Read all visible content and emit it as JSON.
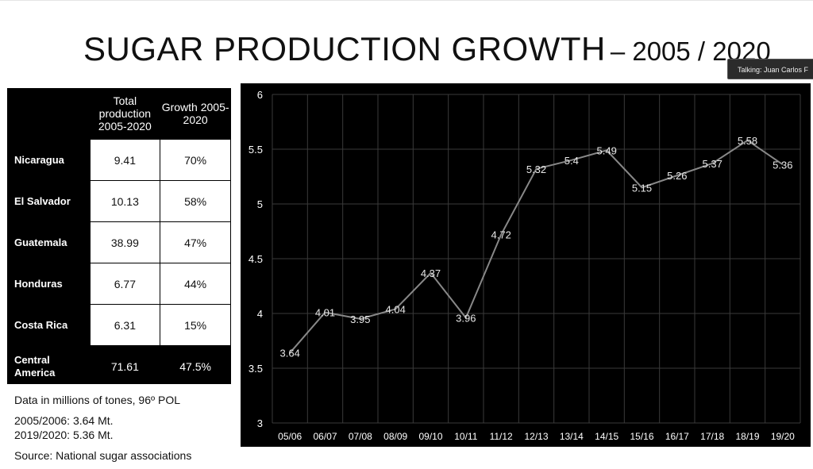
{
  "slide": {
    "title_main": "SUGAR PRODUCTION GROWTH",
    "title_sub": "– 2005 / 2020"
  },
  "meeting": {
    "talking_label": "Talking: Juan Carlos F"
  },
  "table": {
    "headers": [
      "",
      "Total production 2005-2020",
      "Growth 2005- 2020"
    ],
    "rows": [
      {
        "country": "Nicaragua",
        "total": "9.41",
        "growth": "70%"
      },
      {
        "country": "El Salvador",
        "total": "10.13",
        "growth": "58%"
      },
      {
        "country": "Guatemala",
        "total": "38.99",
        "growth": "47%"
      },
      {
        "country": "Honduras",
        "total": "6.77",
        "growth": "44%"
      },
      {
        "country": "Costa Rica",
        "total": "6.31",
        "growth": "15%"
      }
    ],
    "total_row": {
      "country": "Central America",
      "total": "71.61",
      "growth": "47.5%"
    }
  },
  "notes": {
    "units": "Data in millions of tones, 96º POL",
    "line1": "2005/2006:  3.64 Mt.",
    "line2": "2019/2020:  5.36 Mt.",
    "source": "Source: National sugar associations"
  },
  "chart_data": {
    "type": "line",
    "categories": [
      "05/06",
      "06/07",
      "07/08",
      "08/09",
      "09/10",
      "10/11",
      "11/12",
      "12/13",
      "13/14",
      "14/15",
      "15/16",
      "16/17",
      "17/18",
      "18/19",
      "19/20"
    ],
    "values": [
      3.64,
      4.01,
      3.95,
      4.04,
      4.37,
      3.96,
      4.72,
      5.32,
      5.4,
      5.49,
      5.15,
      5.26,
      5.37,
      5.58,
      5.36
    ],
    "labels": [
      "3.64",
      "4.01",
      "3.95",
      "4.04",
      "4.37",
      "3.96",
      "4.72",
      "5.32",
      "5.4",
      "5.49",
      "5.15",
      "5.26",
      "5.37",
      "5.58",
      "5.36"
    ],
    "ylim": [
      3,
      6
    ],
    "yticks": [
      "3",
      "3.5",
      "4",
      "4.5",
      "5",
      "5.5",
      "6"
    ],
    "grid": true,
    "background": "#000000",
    "line_color": "#888888",
    "text_color": "#ffffff"
  }
}
